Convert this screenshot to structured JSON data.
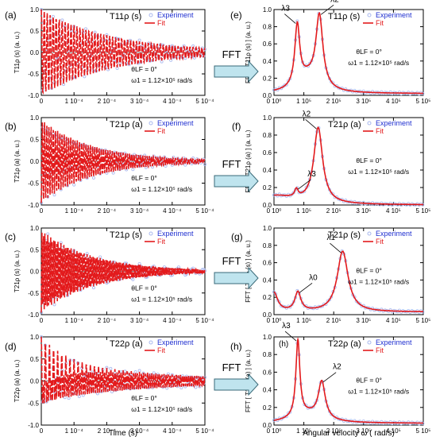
{
  "figure": {
    "fft_label": "FFT",
    "time_axis_label": "Time (s)",
    "freq_axis_label": "Angular velocity  ω  ( rad/s)",
    "legend": {
      "experiment": "Experiment",
      "fit": "Fit"
    },
    "colors": {
      "fit": "#e31a1c",
      "experiment": "#a9b8ee",
      "arrow": "#bfe4ee",
      "arrow_stroke": "#3a6a78",
      "legend_exp_text": "#1f2fd0",
      "legend_fit_text": "#e31a1c"
    }
  },
  "chart_data": [
    {
      "panel": "(a)",
      "type": "line",
      "label": "T11ρ (s)",
      "ylabel": "T11ρ (s)   (a. u.)",
      "xlim": [
        0,
        0.0005
      ],
      "ylim": [
        -1.0,
        1.0
      ],
      "xticks": [
        "0",
        "1 10⁻⁴",
        "2 10⁻⁴",
        "3 10⁻⁴",
        "4 10⁻⁴",
        "5 10⁻⁴"
      ],
      "yticks": [
        "-1.0",
        "-0.5",
        "0.0",
        "0.5",
        "1.0"
      ],
      "annotation": "θLF = 0°",
      "annotation2": "ω1 = 1.12×10⁵ rad/s",
      "signal": {
        "a": [
          1.0
        ],
        "w": [
          110000
        ],
        "d": [
          0.00022
        ]
      }
    },
    {
      "panel": "(b)",
      "type": "line",
      "label": "T21ρ (a)",
      "ylabel": "T21ρ (a)   (a. u.)",
      "xlim": [
        0,
        0.0005
      ],
      "ylim": [
        -1.0,
        1.0
      ],
      "xticks": [
        "0",
        "1 10⁻⁴",
        "2 10⁻⁴",
        "3 10⁻⁴",
        "4 10⁻⁴",
        "5 10⁻⁴"
      ],
      "yticks": [
        "-1.0",
        "-0.5",
        "0.0",
        "0.5",
        "1.0"
      ],
      "annotation": "θLF = 0°",
      "annotation2": "ω1 = 1.12×10⁵ rad/s",
      "signal": {
        "a": [
          -0.95
        ],
        "w": [
          150000
        ],
        "d": [
          0.00016
        ]
      }
    },
    {
      "panel": "(c)",
      "type": "line",
      "label": "T21ρ (s)",
      "ylabel": "T21ρ (s)   (a. u.)",
      "xlim": [
        0,
        0.0005
      ],
      "ylim": [
        -1.0,
        1.0
      ],
      "xticks": [
        "0",
        "1 10⁻⁴",
        "2 10⁻⁴",
        "3 10⁻⁴",
        "4 10⁻⁴",
        "5 10⁻⁴"
      ],
      "yticks": [
        "-1.0",
        "-0.5",
        "0.0",
        "0.5",
        "1.0"
      ],
      "annotation": "θLF = 0°",
      "annotation2": "ω1 = 1.12×10⁵ rad/s",
      "signal": {
        "a": [
          -0.95
        ],
        "w": [
          225000
        ],
        "d": [
          0.00016
        ]
      }
    },
    {
      "panel": "(d)",
      "type": "line",
      "label": "T22ρ (a)",
      "ylabel": "T22ρ (a)   (a. u.)",
      "xlim": [
        0,
        0.0005
      ],
      "ylim": [
        -1.0,
        1.0
      ],
      "xticks": [
        "0",
        "1 10⁻⁴",
        "2 10⁻⁴",
        "3 10⁻⁴",
        "4 10⁻⁴",
        "5 10⁻⁴"
      ],
      "yticks": [
        "-1.0",
        "-0.5",
        "0.0",
        "0.5",
        "1.0"
      ],
      "annotation": "θLF = 0°",
      "annotation2": "ω1 = 1.12×10⁵ rad/s",
      "signal": {
        "a": [
          0.55,
          0.45
        ],
        "w": [
          80000,
          160000
        ],
        "d": [
          8e-05,
          0.00035
        ]
      }
    },
    {
      "panel": "(e)",
      "type": "line",
      "label": "T11ρ (s)",
      "ylabel": "FFT [ T11ρ (s) ]   (a. u.)",
      "xlim": [
        0,
        500000
      ],
      "ylim": [
        0,
        1.0
      ],
      "xticks": [
        "0 10⁰",
        "1 10⁵",
        "2 10⁵",
        "3 10⁵",
        "4 10⁵",
        "5 10⁵"
      ],
      "yticks": [
        "0.0",
        "0.2",
        "0.4",
        "0.6",
        "0.8",
        "1.0"
      ],
      "annotation": "θLF = 0°",
      "annotation2": "ω1 = 1.12×10⁵ rad/s",
      "arrow_labels": [
        "λ3",
        "λ2"
      ],
      "spectrum": {
        "base": 0.02,
        "peaks": [
          [
            78000,
            0.7,
            10000
          ],
          [
            152000,
            0.82,
            14000
          ],
          [
            115000,
            0.18,
            45000
          ]
        ]
      }
    },
    {
      "panel": "(f)",
      "type": "line",
      "label": "T21ρ (a)",
      "ylabel": "FFT [ T21ρ (a) ]   (a. u.)",
      "xlim": [
        0,
        500000
      ],
      "ylim": [
        0,
        1.0
      ],
      "xticks": [
        "0 10⁰",
        "1 10⁵",
        "2 10⁵",
        "3 10⁵",
        "4 10⁵",
        "5 10⁵"
      ],
      "yticks": [
        "0.0",
        "0.2",
        "0.4",
        "0.6",
        "0.8",
        "1.0"
      ],
      "annotation": "θLF = 0°",
      "annotation2": "ω1 = 1.12×10⁵ rad/s",
      "arrow_labels": [
        "λ2",
        "λ3"
      ],
      "spectrum": {
        "base": 0.0,
        "peaks": [
          [
            148000,
            0.86,
            18000
          ],
          [
            75000,
            0.09,
            7000
          ],
          [
            0,
            0.1,
            90000
          ]
        ]
      }
    },
    {
      "panel": "(g)",
      "type": "line",
      "label": "T21ρ (s)",
      "ylabel": "FFT [ T21ρ (s) ]   (a. u.)",
      "xlim": [
        0,
        500000
      ],
      "ylim": [
        0,
        1.0
      ],
      "xticks": [
        "0 10⁰",
        "1 10⁵",
        "2 10⁵",
        "3 10⁵",
        "4 10⁵",
        "5 10⁵"
      ],
      "yticks": [
        "0.0",
        "0.2",
        "0.4",
        "0.6",
        "0.8",
        "1.0"
      ],
      "annotation": "θLF = 0°",
      "annotation2": "ω1 = 1.12×10⁵ rad/s",
      "arrow_labels": [
        "λ1",
        "λ0"
      ],
      "spectrum": {
        "base": 0.03,
        "peaks": [
          [
            230000,
            0.7,
            22000
          ],
          [
            80000,
            0.22,
            12000
          ],
          [
            0,
            0.22,
            15000
          ]
        ]
      }
    },
    {
      "panel": "(h)",
      "type": "line",
      "label": "T22ρ (a)",
      "ylabel": "FFT [ T22ρ (a) ]   (a. u.)",
      "xlim": [
        0,
        500000
      ],
      "ylim": [
        0,
        1.0
      ],
      "xticks": [
        "0 10⁰",
        "1 10⁵",
        "2 10⁵",
        "3 10⁵",
        "4 10⁵",
        "5 10⁵"
      ],
      "yticks": [
        "0.0",
        "0.2",
        "0.4",
        "0.6",
        "0.8",
        "1.0"
      ],
      "annotation": "θLF = 0°",
      "annotation2": "ω1 = 1.12×10⁵ rad/s",
      "arrow_labels": [
        "λ3",
        "λ2"
      ],
      "inner_label": "(h)",
      "spectrum": {
        "base": 0.02,
        "peaks": [
          [
            80000,
            0.86,
            8000
          ],
          [
            160000,
            0.42,
            14000
          ],
          [
            110000,
            0.1,
            60000
          ]
        ]
      }
    }
  ]
}
